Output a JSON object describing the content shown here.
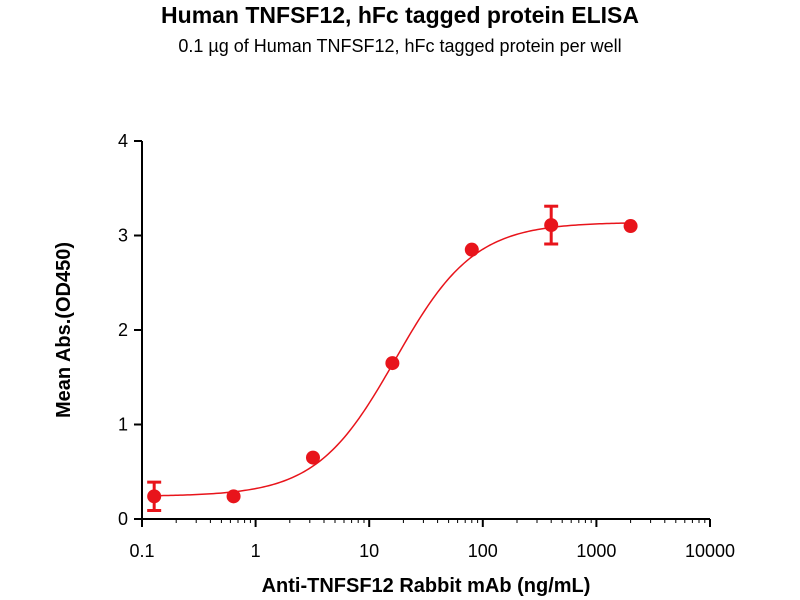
{
  "chart_data": {
    "type": "scatter",
    "title": "Human TNFSF12, hFc tagged protein ELISA",
    "subtitle": "0.1 µg of Human TNFSF12, hFc tagged protein per well",
    "xlabel": "Anti-TNFSF12 Rabbit mAb (ng/mL)",
    "ylabel": "Mean Abs.(OD450)",
    "x_scale": "log",
    "xlim": [
      0.1,
      10000
    ],
    "ylim": [
      0,
      4
    ],
    "x_ticks": [
      "0.1",
      "1",
      "10",
      "100",
      "1000",
      "10000"
    ],
    "y_ticks": [
      "0",
      "1",
      "2",
      "3",
      "4"
    ],
    "grid": false,
    "color": "#e8141b",
    "series": [
      {
        "x": [
          0.128,
          0.64,
          3.2,
          16,
          80,
          400,
          2000
        ],
        "y": [
          0.24,
          0.24,
          0.65,
          1.65,
          2.85,
          3.11,
          3.1
        ],
        "error": [
          0.15,
          0.02,
          0.02,
          0.02,
          0.02,
          0.2,
          0.02
        ]
      }
    ],
    "fit": {
      "model": "4PL",
      "bottom": 0.24,
      "top": 3.14,
      "ec50": 17,
      "hill": 1.25
    }
  }
}
